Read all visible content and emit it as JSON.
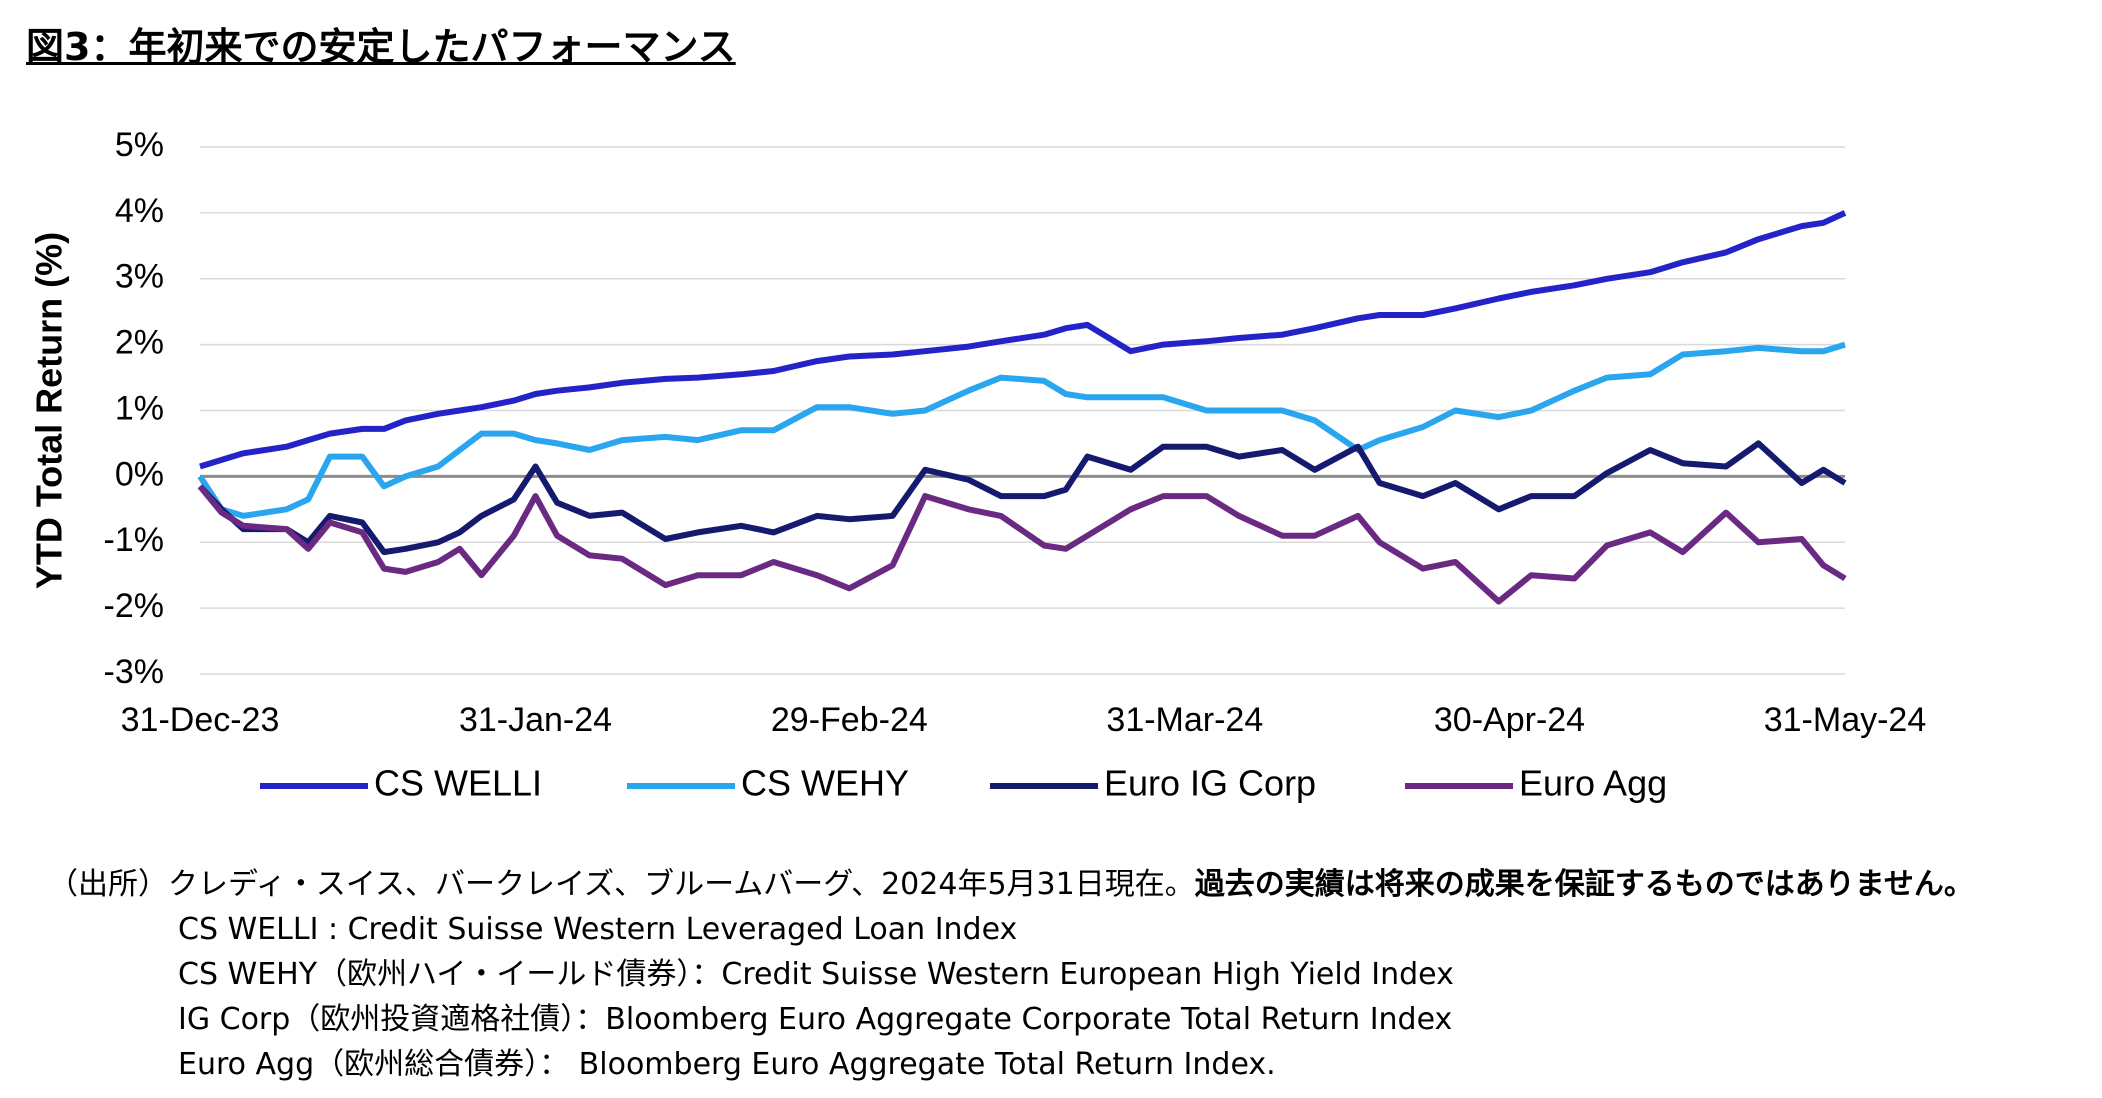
{
  "chart_data": {
    "type": "line",
    "title": "図3：年初来での安定したパフォーマンス",
    "y_label": "YTD Total Return (%)",
    "x": [
      "2023-12-31",
      "2024-01-02",
      "2024-01-04",
      "2024-01-08",
      "2024-01-10",
      "2024-01-12",
      "2024-01-15",
      "2024-01-17",
      "2024-01-19",
      "2024-01-22",
      "2024-01-24",
      "2024-01-26",
      "2024-01-29",
      "2024-01-31",
      "2024-02-02",
      "2024-02-05",
      "2024-02-08",
      "2024-02-12",
      "2024-02-15",
      "2024-02-19",
      "2024-02-22",
      "2024-02-26",
      "2024-02-29",
      "2024-03-04",
      "2024-03-07",
      "2024-03-11",
      "2024-03-14",
      "2024-03-18",
      "2024-03-20",
      "2024-03-22",
      "2024-03-26",
      "2024-03-29",
      "2024-04-02",
      "2024-04-05",
      "2024-04-09",
      "2024-04-12",
      "2024-04-16",
      "2024-04-18",
      "2024-04-22",
      "2024-04-25",
      "2024-04-29",
      "2024-05-02",
      "2024-05-06",
      "2024-05-09",
      "2024-05-13",
      "2024-05-16",
      "2024-05-20",
      "2024-05-23",
      "2024-05-27",
      "2024-05-29",
      "2024-05-31"
    ],
    "xlim": [
      "2023-12-31",
      "2024-05-31"
    ],
    "xticks": [
      {
        "value": "2023-12-31",
        "label": "31-Dec-23"
      },
      {
        "value": "2024-01-31",
        "label": "31-Jan-24"
      },
      {
        "value": "2024-02-29",
        "label": "29-Feb-24"
      },
      {
        "value": "2024-03-31",
        "label": "31-Mar-24"
      },
      {
        "value": "2024-04-30",
        "label": "30-Apr-24"
      },
      {
        "value": "2024-05-31",
        "label": "31-May-24"
      }
    ],
    "ylim": [
      -3,
      5
    ],
    "yticks": [
      {
        "value": 5,
        "label": "5%"
      },
      {
        "value": 4,
        "label": "4%"
      },
      {
        "value": 3,
        "label": "3%"
      },
      {
        "value": 2,
        "label": "2%"
      },
      {
        "value": 1,
        "label": "1%"
      },
      {
        "value": 0,
        "label": "0%"
      },
      {
        "value": -1,
        "label": "-1%"
      },
      {
        "value": -2,
        "label": "-2%"
      },
      {
        "value": -3,
        "label": "-3%"
      }
    ],
    "zero_line": true,
    "series": [
      {
        "name": "CS WELLI",
        "color": "#2323c8",
        "values": [
          0.15,
          0.25,
          0.35,
          0.45,
          0.55,
          0.65,
          0.72,
          0.72,
          0.85,
          0.95,
          1.0,
          1.05,
          1.15,
          1.25,
          1.3,
          1.35,
          1.42,
          1.48,
          1.5,
          1.55,
          1.6,
          1.75,
          1.82,
          1.85,
          1.9,
          1.97,
          2.05,
          2.15,
          2.25,
          2.3,
          1.9,
          2.0,
          2.05,
          2.1,
          2.15,
          2.25,
          2.4,
          2.45,
          2.45,
          2.55,
          2.7,
          2.8,
          2.9,
          3.0,
          3.1,
          3.25,
          3.4,
          3.6,
          3.8,
          3.85,
          4.0
        ]
      },
      {
        "name": "CS WEHY",
        "color": "#2aa6ee",
        "values": [
          0,
          -0.5,
          -0.6,
          -0.5,
          -0.35,
          0.3,
          0.3,
          -0.15,
          0.0,
          0.15,
          0.4,
          0.65,
          0.65,
          0.55,
          0.5,
          0.4,
          0.55,
          0.6,
          0.55,
          0.7,
          0.7,
          1.05,
          1.05,
          0.95,
          1.0,
          1.3,
          1.5,
          1.45,
          1.25,
          1.2,
          1.2,
          1.2,
          1.0,
          1.0,
          1.0,
          0.85,
          0.4,
          0.55,
          0.75,
          1.0,
          0.9,
          1.0,
          1.3,
          1.5,
          1.55,
          1.85,
          1.9,
          1.95,
          1.9,
          1.9,
          2.0
        ]
      },
      {
        "name": "Euro IG Corp",
        "color": "#161a6e",
        "values": [
          -0.15,
          -0.5,
          -0.8,
          -0.8,
          -1.0,
          -0.6,
          -0.7,
          -1.15,
          -1.1,
          -1.0,
          -0.85,
          -0.6,
          -0.35,
          0.15,
          -0.4,
          -0.6,
          -0.55,
          -0.95,
          -0.85,
          -0.75,
          -0.85,
          -0.6,
          -0.65,
          -0.6,
          0.1,
          -0.05,
          -0.3,
          -0.3,
          -0.2,
          0.3,
          0.1,
          0.45,
          0.45,
          0.3,
          0.4,
          0.1,
          0.45,
          -0.1,
          -0.3,
          -0.1,
          -0.5,
          -0.3,
          -0.3,
          0.05,
          0.4,
          0.2,
          0.15,
          0.5,
          -0.1,
          0.1,
          -0.1
        ]
      },
      {
        "name": "Euro Agg",
        "color": "#6a2a82",
        "values": [
          -0.15,
          -0.55,
          -0.75,
          -0.8,
          -1.1,
          -0.7,
          -0.85,
          -1.4,
          -1.45,
          -1.3,
          -1.1,
          -1.5,
          -0.9,
          -0.3,
          -0.9,
          -1.2,
          -1.25,
          -1.65,
          -1.5,
          -1.5,
          -1.3,
          -1.5,
          -1.7,
          -1.35,
          -0.3,
          -0.5,
          -0.6,
          -1.05,
          -1.1,
          -0.9,
          -0.5,
          -0.3,
          -0.3,
          -0.6,
          -0.9,
          -0.9,
          -0.6,
          -1.0,
          -1.4,
          -1.3,
          -1.9,
          -1.5,
          -1.55,
          -1.05,
          -0.85,
          -1.15,
          -0.55,
          -1.0,
          -0.95,
          -1.35,
          -1.55
        ]
      }
    ]
  },
  "footnotes": {
    "source": "（出所）クレディ・スイス、バークレイズ、ブルームバーグ、2024年5月31日現在。",
    "disclaimer": "過去の実績は将来の成果を保証するものではありません。",
    "lines": [
      "CS WELLI : Credit Suisse Western Leveraged Loan Index",
      "CS WEHY（欧州ハイ・イールド債券）：Credit Suisse Western European High Yield Index",
      "IG Corp（欧州投資適格社債）：Bloomberg Euro Aggregate Corporate Total Return Index",
      "Euro Agg（欧州総合債券）： Bloomberg Euro Aggregate Total Return Index."
    ]
  }
}
